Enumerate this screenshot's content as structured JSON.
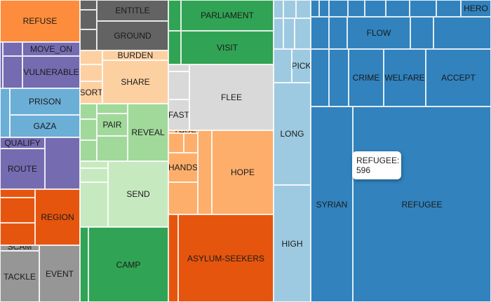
{
  "chart_data": {
    "type": "treemap",
    "hovered": {
      "label": "REFUGEE",
      "value": 596
    },
    "groups": [
      {
        "id": "orange_a",
        "color": "#fd8d3c"
      },
      {
        "id": "purple",
        "color": "#756bb1"
      },
      {
        "id": "blue_mid",
        "color": "#6baed6"
      },
      {
        "id": "orange_dark",
        "color": "#e6550d"
      },
      {
        "id": "grey",
        "color": "#969696"
      },
      {
        "id": "grey_dark",
        "color": "#636363"
      },
      {
        "id": "peach",
        "color": "#fdd0a2"
      },
      {
        "id": "green_light",
        "color": "#a1d99b"
      },
      {
        "id": "green_pale",
        "color": "#c7e9c0"
      },
      {
        "id": "green",
        "color": "#31a354"
      },
      {
        "id": "grey_light",
        "color": "#d9d9d9"
      },
      {
        "id": "orange_mid",
        "color": "#fdae6b"
      },
      {
        "id": "blue_light",
        "color": "#9ecae1"
      },
      {
        "id": "blue",
        "color": "#3182bd"
      }
    ],
    "labels": {
      "REFUSE": "REFUSE",
      "MOVE_ON": "MOVE_ON",
      "VULNERABLE": "VULNERABLE",
      "PRISON": "PRISON",
      "GAZA": "GAZA",
      "QUALIFY": "QUALIFY",
      "ROUTE": "ROUTE",
      "REGION": "REGION",
      "SCAM": "SCAM",
      "TACKLE": "TACKLE",
      "EVENT": "EVENT",
      "ENTITLE": "ENTITLE",
      "GROUND": "GROUND",
      "BURDEN": "BURDEN",
      "SHARE": "SHARE",
      "SORT": "SORT",
      "PAIR": "PAIR",
      "REVEAL": "REVEAL",
      "SEND": "SEND",
      "CAMP": "CAMP",
      "PARLIAMENT": "PARLIAMENT",
      "VISIT": "VISIT",
      "FLEE": "FLEE",
      "FAST": "FAST",
      "THREAT": "THREAT",
      "HANDS": "HANDS",
      "HOPE": "HOPE",
      "ASYLUM-SEEKERS": "ASYLUM-SEEKERS",
      "PICK": "PICK",
      "LONG": "LONG",
      "HIGH": "HIGH",
      "HERO": "HERO",
      "FLOW": "FLOW",
      "CRIME": "CRIME",
      "WELFARE": "WELFARE",
      "ACCEPT": "ACCEPT",
      "SYRIAN": "SYRIAN",
      "REFUGEE": "REFUGEE"
    }
  }
}
